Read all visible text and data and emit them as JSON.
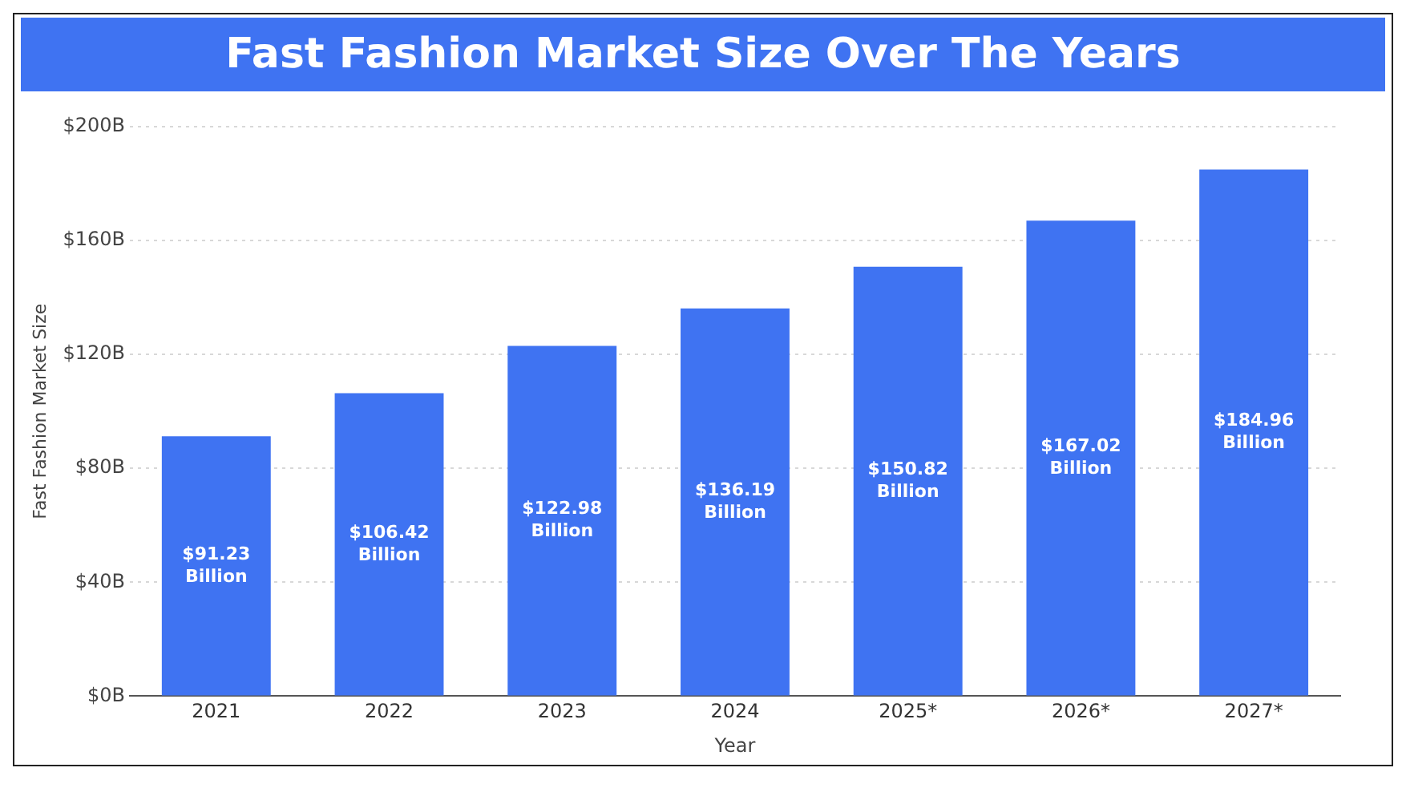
{
  "chart_data": {
    "type": "bar",
    "title": "Fast Fashion Market Size Over The Years",
    "xlabel": "Year",
    "ylabel": "Fast Fashion Market Size",
    "categories": [
      "2021",
      "2022",
      "2023",
      "2024",
      "2025*",
      "2026*",
      "2027*"
    ],
    "values": [
      91.23,
      106.42,
      122.98,
      136.19,
      150.82,
      167.02,
      184.96
    ],
    "value_labels": [
      "$91.23 Billion",
      "$106.42 Billion",
      "$122.98 Billion",
      "$136.19 Billion",
      "$150.82 Billion",
      "$167.02 Billion",
      "$184.96 Billion"
    ],
    "color": "#3f73f2",
    "ylim": [
      0,
      200
    ],
    "yticks": [
      {
        "value": 0,
        "label": "$0B"
      },
      {
        "value": 40,
        "label": "$40B"
      },
      {
        "value": 80,
        "label": "$80B"
      },
      {
        "value": 120,
        "label": "$120B"
      },
      {
        "value": 160,
        "label": "$160B"
      },
      {
        "value": 200,
        "label": "$200B"
      }
    ],
    "grid": "y",
    "legend": false
  }
}
